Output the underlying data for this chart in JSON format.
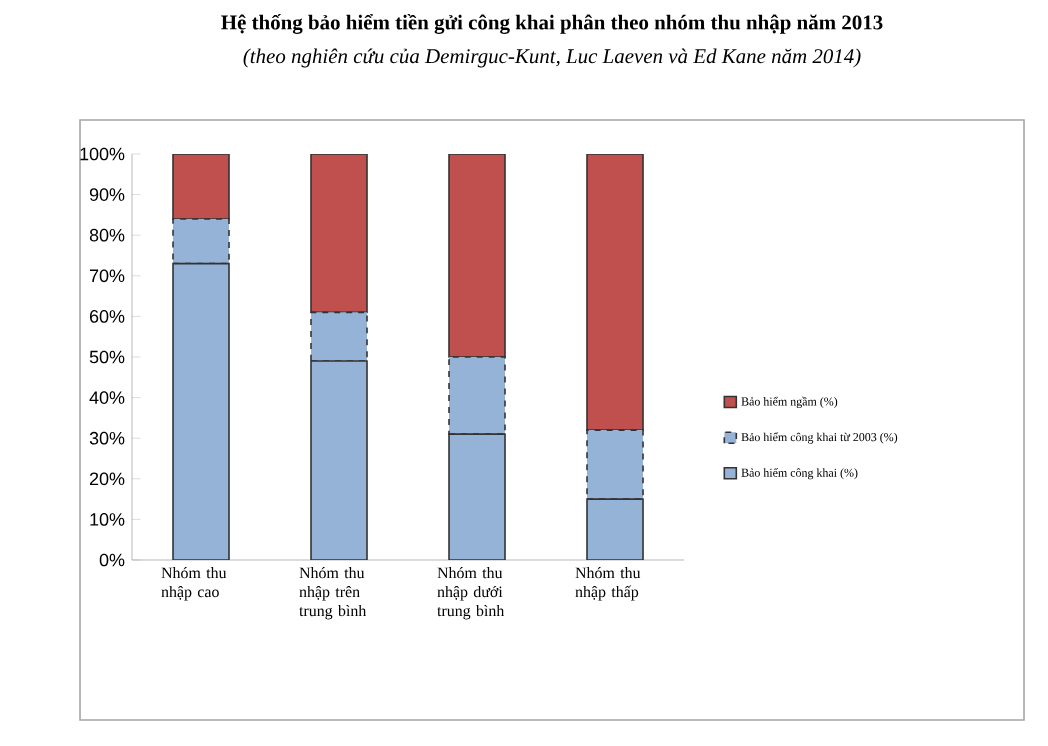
{
  "chart_data": {
    "type": "bar",
    "stacked": true,
    "title": "Hệ thống bảo hiểm tiền gửi công khai phân theo nhóm thu nhập năm 2013",
    "subtitle": "(theo nghiên cứu của Demirguc-Kunt, Luc Laeven và Ed Kane năm 2014)",
    "categories": [
      "Nhóm thu nhập cao",
      "Nhóm thu nhập trên trung bình",
      "Nhóm thu nhập dưới trung bình",
      "Nhóm thu nhập thấp"
    ],
    "series": [
      {
        "name": "Bảo hiểm công khai (%)",
        "color": "#95b3d7",
        "values": [
          73,
          49,
          31,
          15
        ]
      },
      {
        "name": "Bảo hiểm công khai từ 2003 (%)",
        "color": "#95b3d7",
        "values": [
          11,
          12,
          19,
          17
        ],
        "line_style": "dashed"
      },
      {
        "name": "Bảo hiểm ngầm (%)",
        "color": "#c0504d",
        "values": [
          16,
          39,
          50,
          68
        ]
      }
    ],
    "ylim": [
      0,
      100
    ],
    "yticks": [
      {
        "value": 0,
        "label": "0%"
      },
      {
        "value": 10,
        "label": "10%"
      },
      {
        "value": 20,
        "label": "20%"
      },
      {
        "value": 30,
        "label": "30%"
      },
      {
        "value": 40,
        "label": "40%"
      },
      {
        "value": 50,
        "label": "50%"
      },
      {
        "value": 60,
        "label": "60%"
      },
      {
        "value": 70,
        "label": "70%"
      },
      {
        "value": 80,
        "label": "80%"
      },
      {
        "value": 90,
        "label": "90%"
      },
      {
        "value": 100,
        "label": "100%"
      }
    ],
    "grid": false,
    "legend": "right"
  }
}
